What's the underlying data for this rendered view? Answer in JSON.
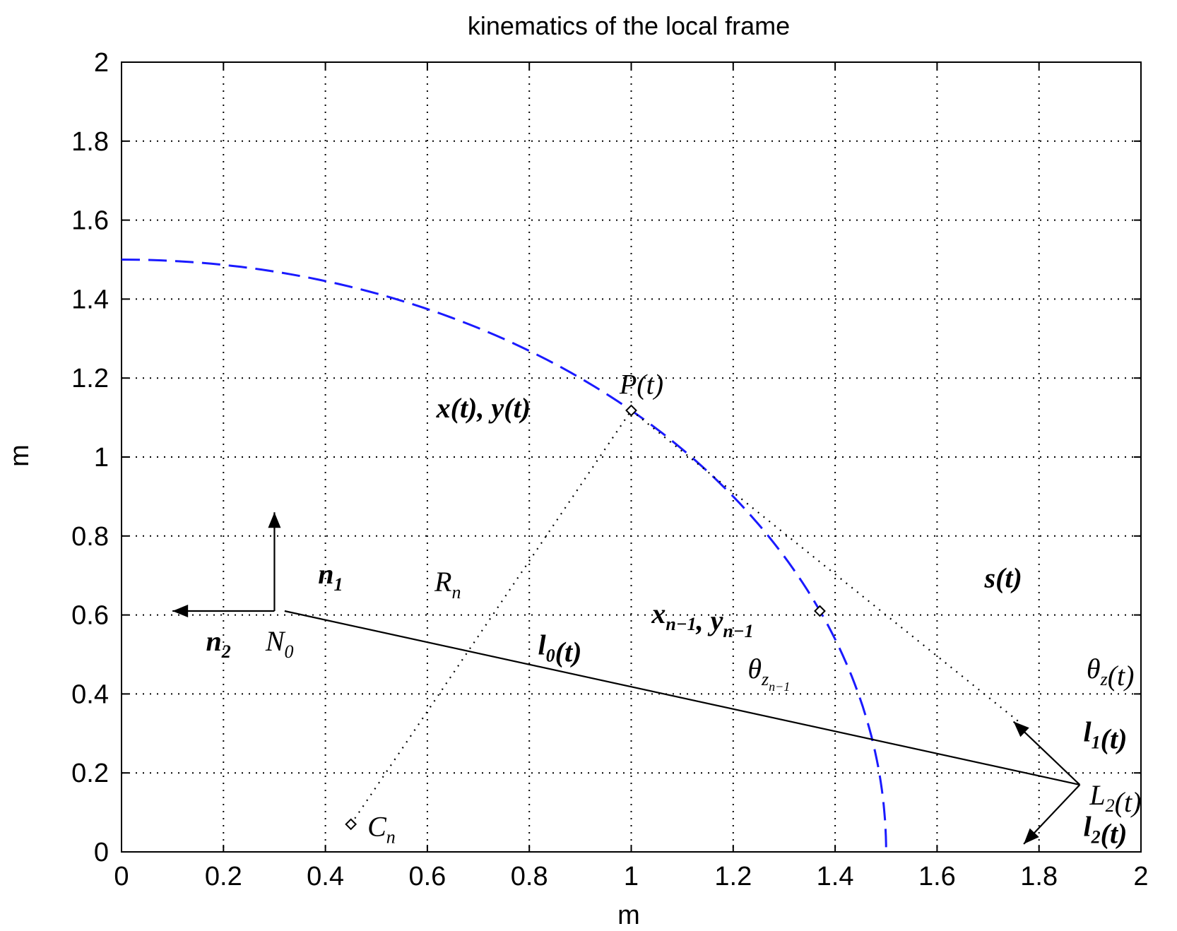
{
  "chart_data": {
    "type": "line",
    "title": "kinematics of the local frame",
    "xlabel": "m",
    "ylabel": "m",
    "xlim": [
      0,
      2
    ],
    "ylim": [
      0,
      2
    ],
    "grid": true,
    "x_ticks": [
      "0",
      "0.2",
      "0.4",
      "0.6",
      "0.8",
      "1",
      "1.2",
      "1.4",
      "1.6",
      "1.8",
      "2"
    ],
    "y_ticks": [
      "0",
      "0.2",
      "0.4",
      "0.6",
      "0.8",
      "1",
      "1.2",
      "1.4",
      "1.6",
      "1.8",
      "2"
    ],
    "series": [
      {
        "style": "dashed",
        "color": "#1a1aff",
        "shape": "quarter ellipse",
        "x": [
          0,
          0.2,
          0.4,
          0.6,
          0.8,
          1.0,
          1.1,
          1.2,
          1.3,
          1.37,
          1.4,
          1.45,
          1.47,
          1.49,
          1.5
        ],
        "y": [
          1.5,
          1.49,
          1.457,
          1.4,
          1.31,
          1.118,
          1.0,
          0.89,
          0.76,
          0.61,
          0.57,
          0.43,
          0.35,
          0.2,
          0.0
        ]
      },
      {
        "style": "solid",
        "color": "#000000",
        "x": [
          0.32,
          1.88
        ],
        "y": [
          0.61,
          0.17
        ]
      },
      {
        "style": "dotted",
        "color": "#000000",
        "x": [
          0.45,
          1.0
        ],
        "y": [
          0.07,
          1.118
        ]
      },
      {
        "style": "dotted",
        "color": "#000000",
        "x": [
          1.0,
          1.76
        ],
        "y": [
          1.118,
          0.33
        ]
      }
    ],
    "markers": [
      {
        "x": 1.0,
        "y": 1.118
      },
      {
        "x": 1.37,
        "y": 0.61
      },
      {
        "x": 0.45,
        "y": 0.07
      }
    ],
    "vectors": [
      {
        "from": [
          0.3,
          0.61
        ],
        "to": [
          0.3,
          0.86
        ]
      },
      {
        "from": [
          0.3,
          0.61
        ],
        "to": [
          0.1,
          0.61
        ]
      },
      {
        "from": [
          1.88,
          0.17
        ],
        "to": [
          1.75,
          0.33
        ]
      },
      {
        "from": [
          1.88,
          0.17
        ],
        "to": [
          1.77,
          0.02
        ]
      }
    ],
    "annotations": [
      {
        "id": "P",
        "text": "P(t)",
        "x": 1.02,
        "y": 1.16
      },
      {
        "id": "xy",
        "text": "x(t), y(t)",
        "x": 0.71,
        "y": 1.1
      },
      {
        "id": "Rn",
        "text": "R",
        "sub": "n",
        "x": 0.64,
        "y": 0.66
      },
      {
        "id": "n1",
        "text": "n",
        "sub": "1",
        "x": 0.41,
        "y": 0.68
      },
      {
        "id": "n2",
        "text": "n",
        "sub": "2",
        "x": 0.19,
        "y": 0.51
      },
      {
        "id": "N0",
        "text": "N",
        "sub": "0",
        "x": 0.31,
        "y": 0.51
      },
      {
        "id": "s",
        "text": "s(t)",
        "x": 1.73,
        "y": 0.67
      },
      {
        "id": "xn1",
        "text": "x",
        "sub": "n−1",
        "text2": ", y",
        "sub2": "n−1",
        "x": 1.14,
        "y": 0.58
      },
      {
        "id": "l0",
        "text": "l",
        "sub": "0",
        "text_after": "(t)",
        "x": 0.86,
        "y": 0.5
      },
      {
        "id": "theta_zn1",
        "text": "θ",
        "sub": "z",
        "subsub": "n−1",
        "x": 1.27,
        "y": 0.44
      },
      {
        "id": "theta_z",
        "text": "θ",
        "sub": "z",
        "text_after": "(t)",
        "x": 1.94,
        "y": 0.44
      },
      {
        "id": "l1",
        "text": "l",
        "sub": "1",
        "text_after": "(t)",
        "x": 1.93,
        "y": 0.28
      },
      {
        "id": "L2",
        "text": "L",
        "sub": "2",
        "text_after": "(t)",
        "x": 1.95,
        "y": 0.12
      },
      {
        "id": "l2",
        "text": "l",
        "sub": "2",
        "text_after": "(t)",
        "x": 1.93,
        "y": 0.04
      },
      {
        "id": "Cn",
        "text": "C",
        "sub": "n",
        "x": 0.51,
        "y": 0.04
      }
    ]
  }
}
